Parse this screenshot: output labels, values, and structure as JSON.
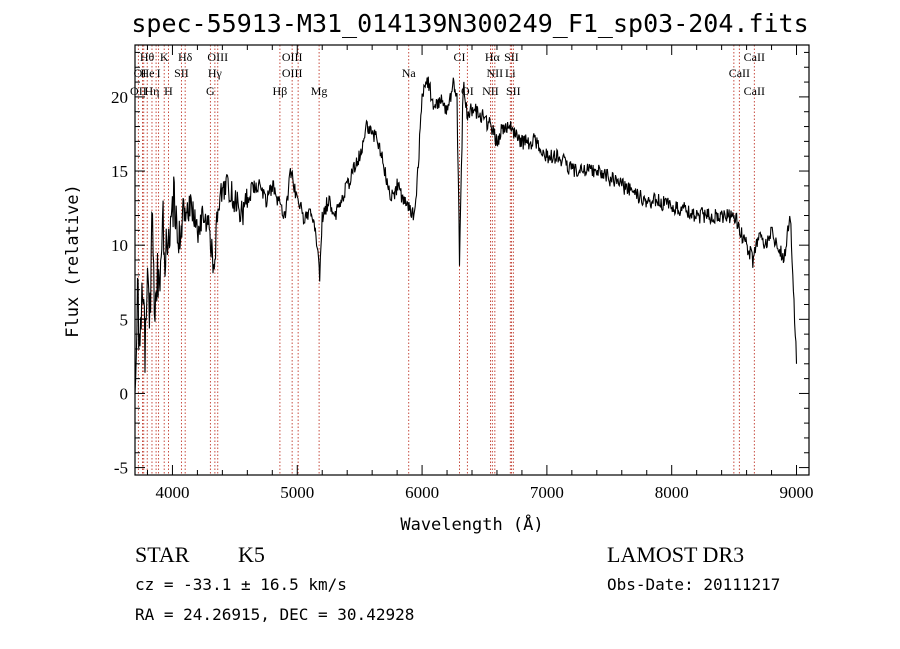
{
  "chart_data": {
    "type": "line",
    "title": "spec-55913-M31_014139N300249_F1_sp03-204.fits",
    "xlabel": "Wavelength (Å)",
    "ylabel": "Flux (relative)",
    "xlim": [
      3700,
      9100
    ],
    "ylim": [
      -5.5,
      23.5
    ],
    "x_ticks": [
      4000,
      5000,
      6000,
      7000,
      8000,
      9000
    ],
    "y_ticks": [
      -5,
      0,
      5,
      10,
      15,
      20
    ],
    "grid": false,
    "legend": "none",
    "series": [
      {
        "color": "#000000",
        "x": [
          3700,
          3720,
          3740,
          3760,
          3780,
          3800,
          3820,
          3840,
          3860,
          3880,
          3900,
          3920,
          3940,
          3960,
          3980,
          4000,
          4050,
          4100,
          4150,
          4200,
          4250,
          4300,
          4330,
          4360,
          4400,
          4450,
          4500,
          4550,
          4600,
          4650,
          4700,
          4750,
          4800,
          4850,
          4900,
          4950,
          5000,
          5050,
          5100,
          5150,
          5180,
          5200,
          5250,
          5300,
          5350,
          5400,
          5450,
          5500,
          5550,
          5600,
          5650,
          5700,
          5750,
          5800,
          5850,
          5900,
          5930,
          5960,
          6000,
          6050,
          6100,
          6150,
          6200,
          6250,
          6280,
          6300,
          6330,
          6360,
          6400,
          6450,
          6500,
          6550,
          6600,
          6650,
          6700,
          6750,
          6800,
          6850,
          6900,
          6950,
          7000,
          7100,
          7200,
          7300,
          7400,
          7500,
          7600,
          7700,
          7800,
          7900,
          8000,
          8100,
          8200,
          8300,
          8400,
          8500,
          8550,
          8600,
          8650,
          8700,
          8750,
          8800,
          8850,
          8900,
          8950,
          9000
        ],
        "y": [
          -1,
          7,
          2,
          8,
          3,
          10,
          5,
          12,
          4,
          9,
          6,
          13,
          9,
          11,
          12,
          13,
          11,
          12,
          13,
          11,
          12,
          11,
          8,
          12,
          14,
          14,
          13,
          12,
          13,
          14,
          14,
          13,
          14,
          13,
          12,
          15,
          13,
          12,
          12,
          11,
          8,
          12,
          13,
          12,
          13,
          14,
          15,
          16,
          18,
          17.5,
          17,
          15,
          13,
          14,
          13,
          12.5,
          12,
          14,
          20,
          21,
          19,
          20,
          19,
          21,
          20,
          9,
          21,
          19,
          19,
          19,
          18.5,
          18,
          17,
          18,
          18,
          17.5,
          17,
          17,
          17,
          16.5,
          16,
          16,
          15,
          15,
          15,
          14.5,
          14,
          13.5,
          13,
          13,
          12.5,
          12.5,
          12,
          12,
          12,
          12,
          11,
          10,
          9,
          11,
          10,
          11,
          10,
          9,
          12,
          2
        ]
      }
    ],
    "lines_red": [
      3727,
      3760,
      3770,
      3798,
      3836,
      3869,
      3889,
      3934,
      3968,
      4072,
      4102,
      4304,
      4340,
      4363,
      4861,
      4959,
      5007,
      5175,
      5893,
      6300,
      6363,
      6548,
      6563,
      6583,
      6707,
      6716,
      6731,
      8498,
      8542,
      8662
    ],
    "line_labels": [
      {
        "text": "Hθ",
        "x": 3797,
        "row": 1
      },
      {
        "text": "K",
        "x": 3934,
        "row": 1
      },
      {
        "text": "Hδ",
        "x": 4102,
        "row": 1
      },
      {
        "text": "OIII",
        "x": 4363,
        "row": 1
      },
      {
        "text": "OIII",
        "x": 4959,
        "row": 1
      },
      {
        "text": "CI",
        "x": 6300,
        "row": 1
      },
      {
        "text": "Hα",
        "x": 6563,
        "row": 1
      },
      {
        "text": "SII",
        "x": 6716,
        "row": 1
      },
      {
        "text": "CaII",
        "x": 8662,
        "row": 1
      },
      {
        "text": "OI",
        "x": 3740,
        "row": 2
      },
      {
        "text": "He",
        "x": 3800,
        "row": 2
      },
      {
        "text": "I",
        "x": 3889,
        "row": 2
      },
      {
        "text": "SII",
        "x": 4072,
        "row": 2
      },
      {
        "text": "Hγ",
        "x": 4340,
        "row": 2
      },
      {
        "text": "OIII",
        "x": 4959,
        "row": 2
      },
      {
        "text": "Na",
        "x": 5893,
        "row": 2
      },
      {
        "text": "NII",
        "x": 6583,
        "row": 2
      },
      {
        "text": "Li",
        "x": 6707,
        "row": 2
      },
      {
        "text": "CaII",
        "x": 8542,
        "row": 2
      },
      {
        "text": "OII",
        "x": 3727,
        "row": 3
      },
      {
        "text": "Hη",
        "x": 3836,
        "row": 3
      },
      {
        "text": "H",
        "x": 3968,
        "row": 3
      },
      {
        "text": "G",
        "x": 4304,
        "row": 3
      },
      {
        "text": "Hβ",
        "x": 4861,
        "row": 3
      },
      {
        "text": "Mg",
        "x": 5175,
        "row": 3
      },
      {
        "text": "OI",
        "x": 6363,
        "row": 3
      },
      {
        "text": "NII",
        "x": 6548,
        "row": 3
      },
      {
        "text": "SII",
        "x": 6731,
        "row": 3
      },
      {
        "text": "CaII",
        "x": 8662,
        "row": 3
      }
    ]
  },
  "info": {
    "object_class": "STAR",
    "subclass": "K5",
    "survey": "LAMOST DR3",
    "redshift": "cz = -33.1 ± 16.5 km/s",
    "obs_date": "Obs-Date: 20111217",
    "coords": "RA =  24.26915, DEC =  30.42928"
  }
}
